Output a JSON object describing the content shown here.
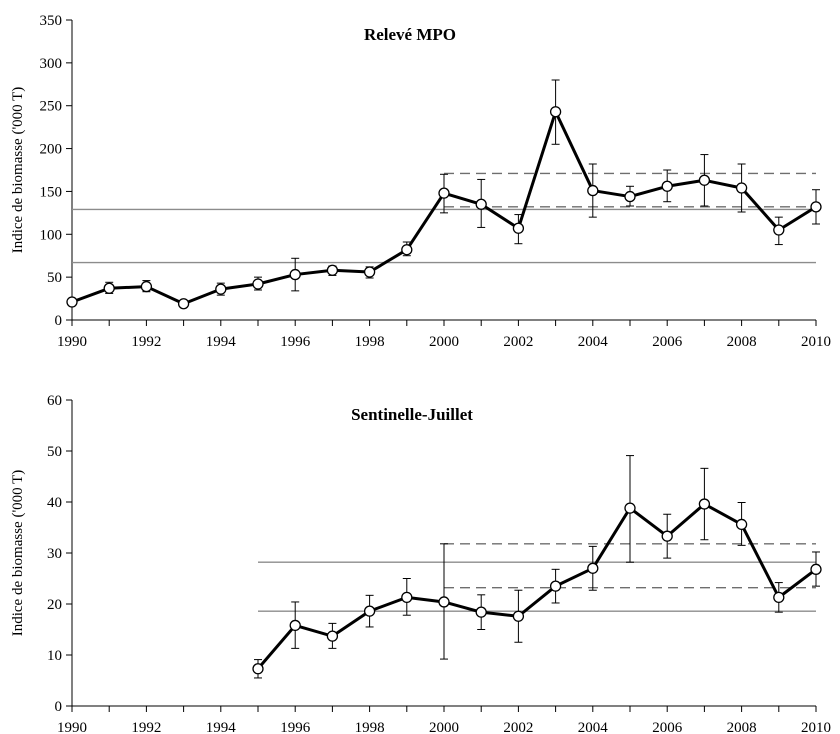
{
  "chart_data": [
    {
      "type": "line",
      "title": "Relevé MPO",
      "ylabel": "Indice de biomasse ('000 T)",
      "xlabel": "",
      "xlim": [
        1990,
        2010
      ],
      "ylim": [
        0,
        350
      ],
      "x_ticks": [
        1990,
        1992,
        1994,
        1996,
        1998,
        2000,
        2002,
        2004,
        2006,
        2008,
        2010
      ],
      "y_ticks": [
        0,
        50,
        100,
        150,
        200,
        250,
        300,
        350
      ],
      "grid": false,
      "series": [
        {
          "x": [
            1990,
            1991,
            1992,
            1993,
            1994,
            1995,
            1996,
            1997,
            1998,
            1999,
            2000,
            2001,
            2002,
            2003,
            2004,
            2005,
            2006,
            2007,
            2008,
            2009,
            2010
          ],
          "values": [
            21,
            37,
            39,
            19,
            36,
            42,
            53,
            58,
            56,
            82,
            148,
            135,
            107,
            243,
            151,
            144,
            156,
            163,
            154,
            105,
            132
          ],
          "err_low": [
            18,
            31,
            33,
            16,
            29,
            35,
            34,
            52,
            49,
            75,
            125,
            108,
            89,
            205,
            120,
            133,
            138,
            133,
            126,
            88,
            112
          ],
          "err_high": [
            24,
            44,
            46,
            23,
            43,
            50,
            72,
            63,
            62,
            91,
            170,
            164,
            123,
            280,
            182,
            156,
            175,
            193,
            182,
            120,
            152
          ]
        }
      ],
      "reference_lines": [
        {
          "style": "solid",
          "y": 129,
          "x_from": 1990,
          "x_to": 2010
        },
        {
          "style": "solid",
          "y": 67,
          "x_from": 1990,
          "x_to": 2010
        },
        {
          "style": "dashed",
          "y": 171,
          "x_from": 2000,
          "x_to": 2010
        },
        {
          "style": "dashed",
          "y": 132,
          "x_from": 2000,
          "x_to": 2010
        }
      ]
    },
    {
      "type": "line",
      "title": "Sentinelle-Juillet",
      "ylabel": "Indice de biomasse ('000 T)",
      "xlabel": "",
      "xlim": [
        1990,
        2010
      ],
      "ylim": [
        0,
        60
      ],
      "x_ticks": [
        1990,
        1992,
        1994,
        1996,
        1998,
        2000,
        2002,
        2004,
        2006,
        2008,
        2010
      ],
      "y_ticks": [
        0,
        10,
        20,
        30,
        40,
        50,
        60
      ],
      "grid": false,
      "series": [
        {
          "x": [
            1995,
            1996,
            1997,
            1998,
            1999,
            2000,
            2001,
            2002,
            2003,
            2004,
            2005,
            2006,
            2007,
            2008,
            2009,
            2010
          ],
          "values": [
            7.3,
            15.8,
            13.7,
            18.6,
            21.3,
            20.4,
            18.4,
            17.6,
            23.5,
            27,
            38.8,
            33.3,
            39.6,
            35.6,
            21.3,
            26.8
          ],
          "err_low": [
            5.5,
            11.3,
            11.3,
            15.5,
            17.8,
            9.2,
            15,
            12.5,
            20.2,
            22.7,
            28.2,
            29,
            32.6,
            31.5,
            18.4,
            23.5
          ],
          "err_high": [
            9.1,
            20.4,
            16.2,
            21.7,
            25,
            31.8,
            21.8,
            22.7,
            26.8,
            31.3,
            49.1,
            37.6,
            46.6,
            39.9,
            24.2,
            30.2
          ]
        }
      ],
      "reference_lines": [
        {
          "style": "solid",
          "y": 28.2,
          "x_from": 1995,
          "x_to": 2010
        },
        {
          "style": "solid",
          "y": 18.6,
          "x_from": 1995,
          "x_to": 2010
        },
        {
          "style": "dashed",
          "y": 31.8,
          "x_from": 2000,
          "x_to": 2010
        },
        {
          "style": "dashed",
          "y": 23.2,
          "x_from": 2000,
          "x_to": 2010
        }
      ]
    }
  ]
}
